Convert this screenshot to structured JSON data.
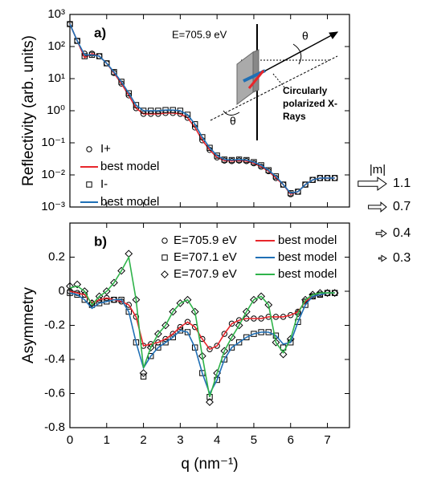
{
  "chart_data": [
    {
      "type": "scatter",
      "panel_label": "a)",
      "ylabel": "Reflectivity (arb. units)",
      "log_y": true,
      "x": [
        0,
        0.2,
        0.4,
        0.6,
        0.8,
        1.0,
        1.2,
        1.4,
        1.6,
        1.8,
        2.0,
        2.2,
        2.4,
        2.6,
        2.8,
        3.0,
        3.2,
        3.4,
        3.6,
        3.8,
        4.0,
        4.2,
        4.4,
        4.6,
        4.8,
        5.0,
        5.2,
        5.4,
        5.6,
        5.8,
        6.0,
        6.2,
        6.4,
        6.6,
        6.8,
        7.0,
        7.2
      ],
      "xlim": [
        0,
        7.6
      ],
      "xticks": [
        0,
        1,
        2,
        3,
        4,
        5,
        6,
        7
      ],
      "ylim": [
        0.001,
        1000
      ],
      "yticks": [
        {
          "value": 1000,
          "label": "10³"
        },
        {
          "value": 100,
          "label": "10²"
        },
        {
          "value": 10,
          "label": "10¹"
        },
        {
          "value": 1,
          "label": "10⁰"
        },
        {
          "value": 0.1,
          "label": "10⁻¹"
        },
        {
          "value": 0.01,
          "label": "10⁻²"
        },
        {
          "value": 0.001,
          "label": "10⁻³"
        }
      ],
      "series": [
        {
          "name": "I+",
          "marker": "circle",
          "color": "#000000",
          "values": [
            500,
            150,
            60,
            60,
            50,
            30,
            15,
            7,
            3,
            1.2,
            0.8,
            0.8,
            0.8,
            0.85,
            0.85,
            0.8,
            0.6,
            0.3,
            0.12,
            0.06,
            0.035,
            0.028,
            0.027,
            0.028,
            0.027,
            0.023,
            0.018,
            0.013,
            0.008,
            0.005,
            0.0025,
            0.003,
            0.005,
            0.007,
            0.008,
            0.008,
            0.008
          ]
        },
        {
          "name": "best model",
          "marker": "none",
          "color": "#e8262b",
          "values": [
            500,
            150,
            45,
            60,
            50,
            30,
            15,
            7,
            3,
            1.2,
            0.8,
            0.8,
            0.8,
            0.85,
            0.85,
            0.8,
            0.6,
            0.3,
            0.12,
            0.06,
            0.035,
            0.028,
            0.027,
            0.028,
            0.027,
            0.023,
            0.018,
            0.013,
            0.008,
            0.005,
            0.0025,
            0.003,
            0.005,
            0.007,
            0.008,
            0.008,
            0.008
          ]
        },
        {
          "name": "I-",
          "marker": "square",
          "color": "#000000",
          "values": [
            500,
            150,
            50,
            55,
            50,
            30,
            16,
            8,
            3.5,
            1.5,
            1.0,
            1.0,
            1.0,
            1.05,
            1.05,
            1.0,
            0.75,
            0.38,
            0.15,
            0.07,
            0.04,
            0.03,
            0.029,
            0.03,
            0.029,
            0.025,
            0.02,
            0.014,
            0.009,
            0.005,
            0.0027,
            0.003,
            0.005,
            0.007,
            0.008,
            0.008,
            0.008
          ]
        },
        {
          "name": "best model",
          "marker": "none",
          "color": "#1f6fb5",
          "values": [
            500,
            150,
            55,
            55,
            50,
            30,
            16,
            8,
            3.5,
            1.5,
            1.0,
            1.0,
            1.0,
            1.05,
            1.05,
            1.0,
            0.75,
            0.38,
            0.15,
            0.07,
            0.04,
            0.03,
            0.029,
            0.03,
            0.029,
            0.025,
            0.02,
            0.014,
            0.009,
            0.005,
            0.0027,
            0.003,
            0.005,
            0.007,
            0.008,
            0.008,
            0.008
          ]
        }
      ],
      "annotations": {
        "energy": "E=705.9 eV",
        "beam": [
          "Circularly",
          "polarized X-",
          "Rays"
        ],
        "theta_top": "θ",
        "theta_bottom": "θ"
      }
    },
    {
      "type": "scatter",
      "panel_label": "b)",
      "ylabel": "Asymmetry",
      "xlabel": "q (nm⁻¹)",
      "x": [
        0,
        0.2,
        0.4,
        0.6,
        0.8,
        1.0,
        1.2,
        1.4,
        1.6,
        1.8,
        2.0,
        2.2,
        2.4,
        2.6,
        2.8,
        3.0,
        3.2,
        3.4,
        3.6,
        3.8,
        4.0,
        4.2,
        4.4,
        4.6,
        4.8,
        5.0,
        5.2,
        5.4,
        5.6,
        5.8,
        6.0,
        6.2,
        6.4,
        6.6,
        6.8,
        7.0,
        7.2
      ],
      "xlim": [
        0,
        7.6
      ],
      "xticks": [
        0,
        1,
        2,
        3,
        4,
        5,
        6,
        7
      ],
      "ylim": [
        -0.8,
        0.4
      ],
      "yticks": [
        0.2,
        0,
        -0.2,
        -0.4,
        -0.6,
        -0.8
      ],
      "series": [
        {
          "name": "E=705.9 eV",
          "marker": "circle",
          "color": "#000000",
          "values": [
            0,
            -0.01,
            -0.02,
            -0.07,
            -0.05,
            -0.04,
            -0.05,
            -0.06,
            -0.08,
            -0.15,
            -0.32,
            -0.31,
            -0.3,
            -0.28,
            -0.25,
            -0.21,
            -0.18,
            -0.21,
            -0.28,
            -0.34,
            -0.32,
            -0.25,
            -0.19,
            -0.17,
            -0.16,
            -0.16,
            -0.16,
            -0.15,
            -0.15,
            -0.15,
            -0.14,
            -0.12,
            -0.06,
            -0.03,
            -0.02,
            -0.01,
            -0.01
          ]
        },
        {
          "name": "E=707.1 eV",
          "marker": "square",
          "color": "#000000",
          "values": [
            -0.01,
            -0.02,
            -0.05,
            -0.08,
            -0.07,
            -0.06,
            -0.05,
            -0.05,
            -0.12,
            -0.3,
            -0.5,
            -0.38,
            -0.33,
            -0.3,
            -0.27,
            -0.23,
            -0.24,
            -0.33,
            -0.48,
            -0.62,
            -0.52,
            -0.4,
            -0.33,
            -0.3,
            -0.27,
            -0.25,
            -0.24,
            -0.24,
            -0.26,
            -0.33,
            -0.3,
            -0.18,
            -0.08,
            -0.03,
            -0.02,
            -0.01,
            -0.01
          ]
        },
        {
          "name": "E=707.9 eV",
          "marker": "diamond",
          "color": "#000000",
          "values": [
            0.03,
            0.04,
            0.0,
            -0.07,
            -0.03,
            0.0,
            0.05,
            0.12,
            0.22,
            -0.05,
            -0.48,
            -0.33,
            -0.25,
            -0.2,
            -0.12,
            -0.07,
            -0.05,
            -0.12,
            -0.38,
            -0.65,
            -0.48,
            -0.35,
            -0.27,
            -0.2,
            -0.12,
            -0.05,
            -0.03,
            -0.08,
            -0.3,
            -0.37,
            -0.28,
            -0.13,
            -0.05,
            -0.02,
            -0.01,
            -0.01,
            -0.01
          ]
        },
        {
          "name": "best model",
          "marker": "none",
          "color": "#e8262b",
          "values": [
            0,
            -0.01,
            -0.02,
            -0.07,
            -0.05,
            -0.04,
            -0.05,
            -0.06,
            -0.08,
            -0.15,
            -0.32,
            -0.31,
            -0.3,
            -0.28,
            -0.25,
            -0.21,
            -0.18,
            -0.21,
            -0.28,
            -0.34,
            -0.32,
            -0.25,
            -0.19,
            -0.17,
            -0.16,
            -0.16,
            -0.16,
            -0.15,
            -0.15,
            -0.15,
            -0.14,
            -0.12,
            -0.06,
            -0.03,
            -0.02,
            -0.01,
            -0.01
          ]
        },
        {
          "name": "best model",
          "marker": "none",
          "color": "#1f6fb5",
          "values": [
            -0.01,
            -0.02,
            -0.05,
            -0.1,
            -0.07,
            -0.06,
            -0.05,
            -0.05,
            -0.12,
            -0.3,
            -0.45,
            -0.38,
            -0.33,
            -0.3,
            -0.27,
            -0.23,
            -0.24,
            -0.33,
            -0.48,
            -0.6,
            -0.52,
            -0.4,
            -0.33,
            -0.3,
            -0.27,
            -0.25,
            -0.24,
            -0.24,
            -0.26,
            -0.31,
            -0.3,
            -0.18,
            -0.08,
            -0.03,
            -0.02,
            -0.01,
            -0.01
          ]
        },
        {
          "name": "best model",
          "marker": "none",
          "color": "#2fb34a",
          "values": [
            0.02,
            0.03,
            0.0,
            -0.08,
            -0.03,
            0.0,
            0.05,
            0.12,
            0.2,
            -0.05,
            -0.45,
            -0.33,
            -0.25,
            -0.2,
            -0.12,
            -0.07,
            -0.05,
            -0.12,
            -0.38,
            -0.62,
            -0.48,
            -0.35,
            -0.27,
            -0.2,
            -0.12,
            -0.05,
            -0.03,
            -0.08,
            -0.3,
            -0.36,
            -0.28,
            -0.13,
            -0.05,
            -0.02,
            -0.01,
            -0.01,
            -0.01
          ]
        }
      ]
    }
  ],
  "moment_legend": {
    "title": "|m|",
    "values": [
      1.1,
      0.7,
      0.4,
      0.3
    ]
  }
}
